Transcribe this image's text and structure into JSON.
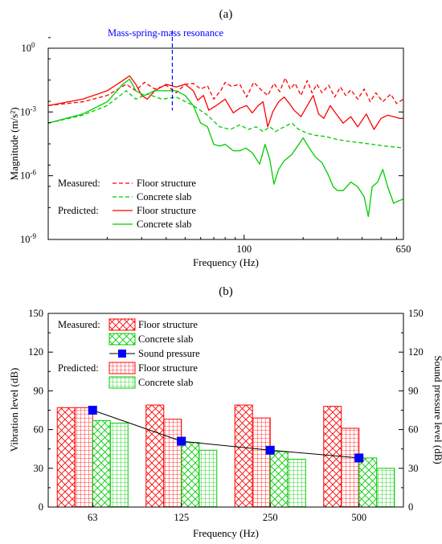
{
  "colors": {
    "floor": "#ff0000",
    "slab": "#00cc00",
    "pressure": "#0000ff",
    "resonance": "#0000ff",
    "axis": "#000000"
  },
  "chart_data": [
    {
      "type": "line",
      "panel_label": "(a)",
      "xlabel": "Frequency (Hz)",
      "ylabel": "Magnitude (m/s²)",
      "x_scale": "log",
      "y_scale": "log",
      "xlim": [
        10,
        650
      ],
      "ylim": [
        1e-09,
        1
      ],
      "x_ticks": [
        {
          "value": 100,
          "label": "100"
        },
        {
          "value": 650,
          "label": "650"
        }
      ],
      "y_ticks": [
        {
          "value": 1e-09,
          "base": "10",
          "exp": "-9"
        },
        {
          "value": 1e-06,
          "base": "10",
          "exp": "-6"
        },
        {
          "value": 0.001,
          "base": "10",
          "exp": "-3"
        },
        {
          "value": 1,
          "base": "10",
          "exp": "0"
        }
      ],
      "annotation": {
        "text": "Mass-spring-mass resonance",
        "x": 43
      },
      "legend": {
        "placement": "bottom-left",
        "group_labels": [
          "Measured:",
          "Predicted:"
        ],
        "entries": [
          {
            "label": "Floor structure",
            "group": "Measured:",
            "series": "measured_floor"
          },
          {
            "label": "Concrete slab",
            "group": "Measured:",
            "series": "measured_slab"
          },
          {
            "label": "Floor structure",
            "group": "Predicted:",
            "series": "predicted_floor"
          },
          {
            "label": "Concrete slab",
            "group": "Predicted:",
            "series": "predicted_slab"
          }
        ]
      },
      "series": [
        {
          "key": "measured_floor",
          "style": "dashed",
          "color": "#ff0000",
          "points": [
            [
              10,
              0.002
            ],
            [
              15,
              0.003
            ],
            [
              20,
              0.006
            ],
            [
              25,
              0.02
            ],
            [
              28,
              0.01
            ],
            [
              31,
              0.025
            ],
            [
              35,
              0.012
            ],
            [
              40,
              0.018
            ],
            [
              45,
              0.008
            ],
            [
              50,
              0.02
            ],
            [
              55,
              0.022
            ],
            [
              60,
              0.012
            ],
            [
              65,
              0.017
            ],
            [
              70,
              0.004
            ],
            [
              76,
              0.01
            ],
            [
              80,
              0.025
            ],
            [
              86,
              0.016
            ],
            [
              95,
              0.02
            ],
            [
              103,
              0.005
            ],
            [
              112,
              0.025
            ],
            [
              122,
              0.011
            ],
            [
              132,
              0.006
            ],
            [
              142,
              0.022
            ],
            [
              152,
              0.009
            ],
            [
              162,
              0.04
            ],
            [
              172,
              0.012
            ],
            [
              182,
              0.022
            ],
            [
              195,
              0.006
            ],
            [
              210,
              0.03
            ],
            [
              222,
              0.008
            ],
            [
              235,
              0.02
            ],
            [
              250,
              0.008
            ],
            [
              270,
              0.018
            ],
            [
              290,
              0.005
            ],
            [
              310,
              0.015
            ],
            [
              330,
              0.006
            ],
            [
              350,
              0.011
            ],
            [
              380,
              0.004
            ],
            [
              410,
              0.012
            ],
            [
              440,
              0.003
            ],
            [
              470,
              0.008
            ],
            [
              510,
              0.003
            ],
            [
              560,
              0.007
            ],
            [
              600,
              0.0025
            ],
            [
              650,
              0.004
            ]
          ]
        },
        {
          "key": "measured_slab",
          "style": "dashed",
          "color": "#00cc00",
          "points": [
            [
              10,
              0.0003
            ],
            [
              15,
              0.0007
            ],
            [
              20,
              0.002
            ],
            [
              25,
              0.01
            ],
            [
              28,
              0.004
            ],
            [
              32,
              0.007
            ],
            [
              38,
              0.004
            ],
            [
              45,
              0.005
            ],
            [
              55,
              0.002
            ],
            [
              65,
              0.0007
            ],
            [
              75,
              0.0002
            ],
            [
              85,
              0.00015
            ],
            [
              95,
              0.00025
            ],
            [
              105,
              0.00015
            ],
            [
              115,
              0.0002
            ],
            [
              125,
              0.00012
            ],
            [
              135,
              0.0002
            ],
            [
              145,
              0.00012
            ],
            [
              160,
              0.0002
            ],
            [
              175,
              0.0003
            ],
            [
              190,
              0.00015
            ],
            [
              210,
              0.0001
            ],
            [
              230,
              8e-05
            ],
            [
              260,
              7e-05
            ],
            [
              300,
              5e-05
            ],
            [
              350,
              4e-05
            ],
            [
              400,
              3.5e-05
            ],
            [
              450,
              3e-05
            ],
            [
              520,
              2.5e-05
            ],
            [
              600,
              2.2e-05
            ],
            [
              650,
              2e-05
            ]
          ]
        },
        {
          "key": "predicted_floor",
          "style": "solid",
          "color": "#ff0000",
          "points": [
            [
              10,
              0.002
            ],
            [
              15,
              0.004
            ],
            [
              20,
              0.01
            ],
            [
              24,
              0.03
            ],
            [
              26,
              0.05
            ],
            [
              28,
              0.02
            ],
            [
              30,
              0.006
            ],
            [
              32,
              0.004
            ],
            [
              35,
              0.01
            ],
            [
              40,
              0.02
            ],
            [
              45,
              0.015
            ],
            [
              50,
              0.02
            ],
            [
              55,
              0.01
            ],
            [
              58,
              0.0035
            ],
            [
              62,
              0.006
            ],
            [
              66,
              0.0012
            ],
            [
              72,
              0.002
            ],
            [
              80,
              0.004
            ],
            [
              88,
              0.0009
            ],
            [
              95,
              0.0015
            ],
            [
              103,
              0.002
            ],
            [
              110,
              0.0009
            ],
            [
              118,
              0.002
            ],
            [
              125,
              0.003
            ],
            [
              132,
              0.0002
            ],
            [
              140,
              0.001
            ],
            [
              150,
              0.003
            ],
            [
              160,
              0.005
            ],
            [
              170,
              0.0025
            ],
            [
              180,
              0.0012
            ],
            [
              195,
              0.0006
            ],
            [
              210,
              0.002
            ],
            [
              225,
              0.006
            ],
            [
              240,
              0.0008
            ],
            [
              255,
              0.0005
            ],
            [
              275,
              0.002
            ],
            [
              295,
              0.0008
            ],
            [
              320,
              0.0003
            ],
            [
              350,
              0.0006
            ],
            [
              380,
              0.0002
            ],
            [
              420,
              0.0008
            ],
            [
              460,
              0.00015
            ],
            [
              500,
              0.0005
            ],
            [
              540,
              0.0007
            ],
            [
              580,
              0.0006
            ],
            [
              620,
              0.0005
            ],
            [
              650,
              0.0005
            ]
          ]
        },
        {
          "key": "predicted_slab",
          "style": "solid",
          "color": "#00cc00",
          "points": [
            [
              10,
              0.0003
            ],
            [
              15,
              0.0008
            ],
            [
              20,
              0.003
            ],
            [
              24,
              0.02
            ],
            [
              26,
              0.035
            ],
            [
              28,
              0.01
            ],
            [
              31,
              0.006
            ],
            [
              35,
              0.01
            ],
            [
              40,
              0.01
            ],
            [
              45,
              0.01
            ],
            [
              50,
              0.006
            ],
            [
              55,
              0.002
            ],
            [
              60,
              0.0003
            ],
            [
              65,
              0.0002
            ],
            [
              70,
              3e-05
            ],
            [
              75,
              2.5e-05
            ],
            [
              80,
              3e-05
            ],
            [
              88,
              1.5e-05
            ],
            [
              95,
              1.5e-05
            ],
            [
              102,
              2e-05
            ],
            [
              110,
              1.2e-05
            ],
            [
              120,
              3.5e-06
            ],
            [
              128,
              3e-05
            ],
            [
              135,
              6e-06
            ],
            [
              142,
              4e-07
            ],
            [
              150,
              2e-06
            ],
            [
              160,
              5e-06
            ],
            [
              175,
              1e-05
            ],
            [
              190,
              3e-05
            ],
            [
              200,
              6e-05
            ],
            [
              215,
              2e-05
            ],
            [
              230,
              8e-06
            ],
            [
              250,
              4e-06
            ],
            [
              270,
              1e-06
            ],
            [
              285,
              3e-07
            ],
            [
              300,
              2e-07
            ],
            [
              320,
              2e-07
            ],
            [
              350,
              5e-07
            ],
            [
              380,
              3e-07
            ],
            [
              410,
              1e-07
            ],
            [
              430,
              1.2e-08
            ],
            [
              450,
              3e-07
            ],
            [
              480,
              5e-07
            ],
            [
              510,
              2e-06
            ],
            [
              540,
              3e-07
            ],
            [
              580,
              5e-08
            ],
            [
              600,
              6e-08
            ],
            [
              650,
              8e-08
            ]
          ]
        }
      ]
    },
    {
      "type": "bar",
      "panel_label": "(b)",
      "xlabel": "Frequency (Hz)",
      "ylabel": "Vibration level (dB)",
      "y2label": "Sound pressure level (dB)",
      "categories": [
        "63",
        "125",
        "250",
        "500"
      ],
      "ylim": [
        0,
        150
      ],
      "y_ticks": [
        "0",
        "30",
        "60",
        "90",
        "120",
        "150"
      ],
      "legend": {
        "placement": "top-left",
        "group_labels": [
          "Measured:",
          "Predicted:"
        ],
        "entries": [
          {
            "label": "Floor structure",
            "group": "Measured:",
            "series": "measured_floor"
          },
          {
            "label": "Concrete slab",
            "group": "Measured:",
            "series": "measured_slab"
          },
          {
            "label": "Sound pressure",
            "group": "",
            "series": "sound_pressure"
          },
          {
            "label": "Floor structure",
            "group": "Predicted:",
            "series": "predicted_floor"
          },
          {
            "label": "Concrete slab",
            "group": "Predicted:",
            "series": "predicted_slab"
          }
        ]
      },
      "series": [
        {
          "key": "measured_floor",
          "pattern": "crosshatch",
          "color": "#ff0000",
          "values": [
            77,
            79,
            79,
            78
          ]
        },
        {
          "key": "predicted_floor",
          "pattern": "grid",
          "color": "#ff0000",
          "values": [
            77,
            68,
            69,
            61
          ]
        },
        {
          "key": "measured_slab",
          "pattern": "crosshatch",
          "color": "#00cc00",
          "values": [
            67,
            50,
            43,
            38
          ]
        },
        {
          "key": "predicted_slab",
          "pattern": "grid",
          "color": "#00cc00",
          "values": [
            65,
            44,
            37,
            30
          ]
        }
      ],
      "line_series": {
        "key": "sound_pressure",
        "axis": "right",
        "marker": "square",
        "color": "#0000ff",
        "values": [
          75,
          51,
          44,
          38
        ]
      }
    }
  ]
}
